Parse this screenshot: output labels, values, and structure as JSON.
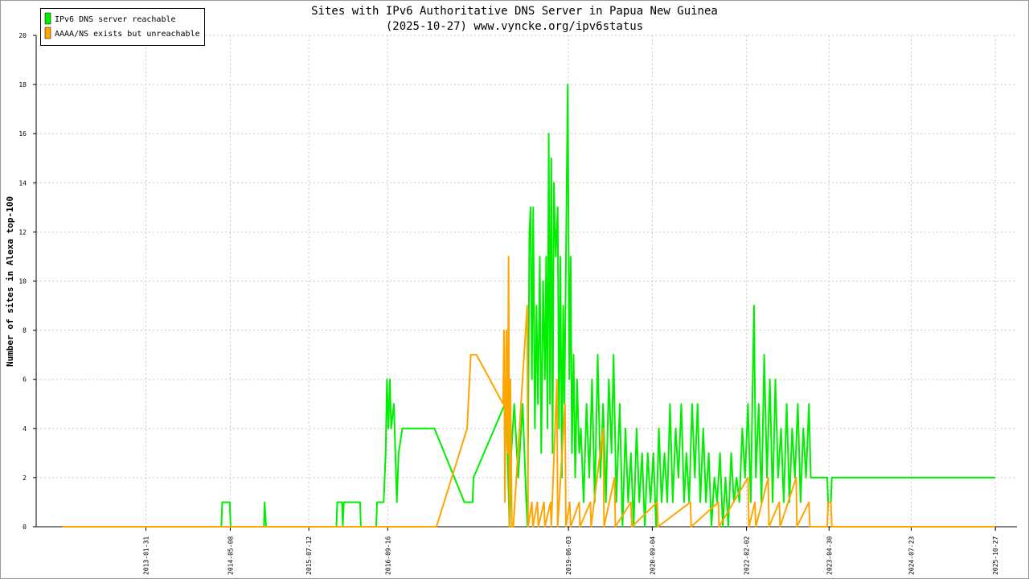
{
  "chart_data": {
    "type": "line",
    "title": "Sites with IPv6 Authoritative DNS Server in Papua New Guinea",
    "subtitle": "(2025-10-27) www.vyncke.org/ipv6status",
    "y_label": "Number of sites in Alexa top-100",
    "xlim": [
      "2011-06-10",
      "2026-02-22"
    ],
    "xticks": [
      "2013-01-31",
      "2014-05-08",
      "2015-07-12",
      "2016-09-16",
      "2019-06-03",
      "2020-09-04",
      "2022-02-02",
      "2023-04-30",
      "2024-07-23",
      "2025-10-27"
    ],
    "ylim": [
      0,
      20
    ],
    "yticks": [
      0,
      2,
      4,
      6,
      8,
      10,
      12,
      14,
      16,
      18,
      20
    ],
    "grid": true,
    "legend": "top-left",
    "series": [
      {
        "name": "IPv6 DNS server reachable",
        "color": "#00ee00",
        "x": [
          "2011-11-01",
          "2014-03-20",
          "2014-03-25",
          "2014-05-05",
          "2014-05-10",
          "2014-11-08",
          "2014-11-12",
          "2014-11-20",
          "2015-12-10",
          "2015-12-15",
          "2016-01-10",
          "2016-01-14",
          "2016-01-20",
          "2016-04-18",
          "2016-04-22",
          "2016-07-15",
          "2016-07-20",
          "2016-08-25",
          "2016-09-05",
          "2016-09-12",
          "2016-09-20",
          "2016-09-28",
          "2016-10-05",
          "2016-10-20",
          "2016-11-05",
          "2016-11-15",
          "2016-12-05",
          "2017-05-30",
          "2017-11-10",
          "2017-12-25",
          "2017-12-30",
          "2018-06-20",
          "2018-07-01",
          "2018-07-15",
          "2018-07-25",
          "2018-08-10",
          "2018-09-01",
          "2018-09-25",
          "2018-10-15",
          "2018-10-22",
          "2018-11-01",
          "2018-11-08",
          "2018-11-15",
          "2018-11-22",
          "2018-12-01",
          "2018-12-10",
          "2018-12-18",
          "2018-12-28",
          "2019-01-05",
          "2019-01-15",
          "2019-01-25",
          "2019-02-01",
          "2019-02-08",
          "2019-02-15",
          "2019-02-22",
          "2019-03-01",
          "2019-03-08",
          "2019-03-15",
          "2019-03-25",
          "2019-04-05",
          "2019-04-12",
          "2019-04-20",
          "2019-04-28",
          "2019-05-05",
          "2019-05-12",
          "2019-05-30",
          "2019-06-08",
          "2019-06-15",
          "2019-06-22",
          "2019-07-01",
          "2019-07-10",
          "2019-07-20",
          "2019-08-01",
          "2019-08-10",
          "2019-08-25",
          "2019-09-10",
          "2019-09-25",
          "2019-10-10",
          "2019-10-25",
          "2019-11-10",
          "2019-11-25",
          "2019-12-10",
          "2019-12-25",
          "2020-01-10",
          "2020-01-25",
          "2020-02-05",
          "2020-02-20",
          "2020-03-10",
          "2020-03-25",
          "2020-04-10",
          "2020-04-25",
          "2020-05-10",
          "2020-05-25",
          "2020-06-10",
          "2020-06-25",
          "2020-07-10",
          "2020-07-25",
          "2020-08-10",
          "2020-08-25",
          "2020-09-10",
          "2020-09-25",
          "2020-10-10",
          "2020-10-25",
          "2020-11-10",
          "2020-11-25",
          "2020-12-10",
          "2020-12-25",
          "2021-01-10",
          "2021-01-25",
          "2021-02-10",
          "2021-02-25",
          "2021-03-10",
          "2021-03-25",
          "2021-04-10",
          "2021-04-25",
          "2021-05-10",
          "2021-05-25",
          "2021-06-10",
          "2021-06-25",
          "2021-07-10",
          "2021-07-25",
          "2021-08-10",
          "2021-08-25",
          "2021-09-10",
          "2021-09-25",
          "2021-10-10",
          "2021-10-25",
          "2021-11-10",
          "2021-11-25",
          "2021-12-10",
          "2021-12-25",
          "2022-01-10",
          "2022-01-25",
          "2022-02-10",
          "2022-02-25",
          "2022-03-15",
          "2022-03-25",
          "2022-04-10",
          "2022-04-25",
          "2022-05-10",
          "2022-05-25",
          "2022-06-10",
          "2022-06-25",
          "2022-07-10",
          "2022-07-25",
          "2022-08-10",
          "2022-08-25",
          "2022-09-10",
          "2022-09-25",
          "2022-10-10",
          "2022-10-25",
          "2022-11-10",
          "2022-11-25",
          "2022-12-10",
          "2022-12-25",
          "2023-01-10",
          "2023-01-20",
          "2023-04-20",
          "2023-04-25",
          "2023-05-10",
          "2023-05-15",
          "2025-10-27"
        ],
        "values": [
          0,
          0,
          1,
          1,
          0,
          0,
          1,
          0,
          0,
          1,
          1,
          0,
          1,
          1,
          0,
          0,
          1,
          1,
          3,
          6,
          4,
          6,
          4,
          5,
          1,
          3,
          4,
          4,
          1,
          1,
          2,
          5,
          4,
          0,
          3,
          5,
          2,
          5,
          1,
          0,
          12,
          13,
          6,
          13,
          4,
          9,
          5,
          11,
          3,
          10,
          6,
          11,
          4,
          16,
          5,
          15,
          3,
          14,
          11,
          13,
          4,
          11,
          2,
          9,
          5,
          18,
          6,
          11,
          3,
          7,
          2,
          6,
          3,
          4,
          1,
          5,
          2,
          6,
          1,
          7,
          2,
          5,
          1,
          6,
          3,
          7,
          1,
          5,
          0,
          4,
          1,
          3,
          0,
          4,
          1,
          3,
          0,
          3,
          1,
          3,
          0,
          4,
          1,
          3,
          1,
          5,
          1,
          4,
          2,
          5,
          1,
          3,
          1,
          5,
          2,
          5,
          1,
          4,
          1,
          3,
          0,
          2,
          1,
          3,
          0,
          2,
          0,
          3,
          1,
          2,
          1,
          4,
          2,
          5,
          1,
          9,
          2,
          5,
          1,
          7,
          2,
          6,
          1,
          6,
          2,
          4,
          1,
          5,
          1,
          4,
          2,
          5,
          1,
          4,
          2,
          5,
          2,
          2,
          1,
          1,
          2,
          2
        ]
      },
      {
        "name": "AAAA/NS exists but unreachable",
        "color": "#ffa500",
        "x": [
          "2011-11-01",
          "2017-06-10",
          "2017-11-25",
          "2017-12-15",
          "2018-01-15",
          "2018-06-10",
          "2018-06-15",
          "2018-06-20",
          "2018-06-28",
          "2018-07-05",
          "2018-07-10",
          "2018-07-15",
          "2018-07-20",
          "2018-07-28",
          "2018-08-05",
          "2018-10-20",
          "2018-10-25",
          "2018-11-15",
          "2018-11-20",
          "2018-12-15",
          "2018-12-20",
          "2019-01-20",
          "2019-01-25",
          "2019-02-25",
          "2019-03-01",
          "2019-04-01",
          "2019-04-05",
          "2019-05-15",
          "2019-05-20",
          "2019-06-10",
          "2019-06-15",
          "2019-08-01",
          "2019-08-05",
          "2019-10-01",
          "2019-10-05",
          "2019-12-10",
          "2019-12-15",
          "2020-02-10",
          "2020-02-15",
          "2020-05-10",
          "2020-05-15",
          "2020-10-01",
          "2020-10-05",
          "2021-04-01",
          "2021-04-05",
          "2021-09-01",
          "2021-09-05",
          "2022-02-10",
          "2022-02-15",
          "2022-03-20",
          "2022-03-25",
          "2022-06-01",
          "2022-06-05",
          "2022-08-01",
          "2022-08-05",
          "2022-11-01",
          "2022-11-05",
          "2023-01-10",
          "2023-01-15",
          "2023-04-20",
          "2023-04-25",
          "2023-05-10",
          "2023-05-15",
          "2025-10-27"
        ],
        "values": [
          0,
          0,
          4,
          7,
          7,
          5,
          8,
          1,
          8,
          3,
          11,
          0,
          6,
          0,
          0,
          9,
          0,
          1,
          0,
          1,
          0,
          1,
          0,
          1,
          0,
          6,
          0,
          5,
          0,
          1,
          0,
          1,
          0,
          1,
          0,
          4,
          0,
          2,
          0,
          1,
          0,
          1,
          0,
          1,
          0,
          1,
          0,
          2,
          0,
          1,
          0,
          2,
          0,
          1,
          0,
          2,
          0,
          1,
          0,
          0,
          1,
          1,
          0,
          0
        ]
      }
    ]
  }
}
